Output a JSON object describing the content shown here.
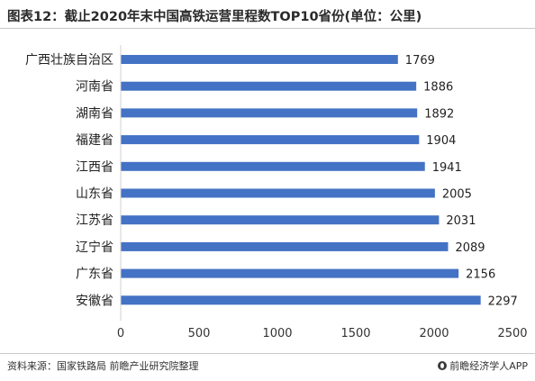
{
  "header": {
    "title": "图表12：截止2020年末中国高铁运营里程数TOP10省份(单位：公里)"
  },
  "footer": {
    "source": "资料来源：国家铁路局 前瞻产业研究院整理",
    "brand": "前瞻经济学人APP"
  },
  "colors": {
    "bar": "#4472c4",
    "axis_text": "#333333",
    "label_text": "#222222"
  },
  "chart_data": {
    "type": "bar",
    "orientation": "horizontal",
    "categories": [
      "广西壮族自治区",
      "河南省",
      "湖南省",
      "福建省",
      "江西省",
      "山东省",
      "江苏省",
      "辽宁省",
      "广东省",
      "安徽省"
    ],
    "values": [
      1769,
      1886,
      1892,
      1904,
      1941,
      2005,
      2031,
      2089,
      2156,
      2297
    ],
    "xlim": [
      0,
      2500
    ],
    "xticks": [
      0,
      500,
      1000,
      1500,
      2000,
      2500
    ],
    "grid": false,
    "data_labels": true
  }
}
